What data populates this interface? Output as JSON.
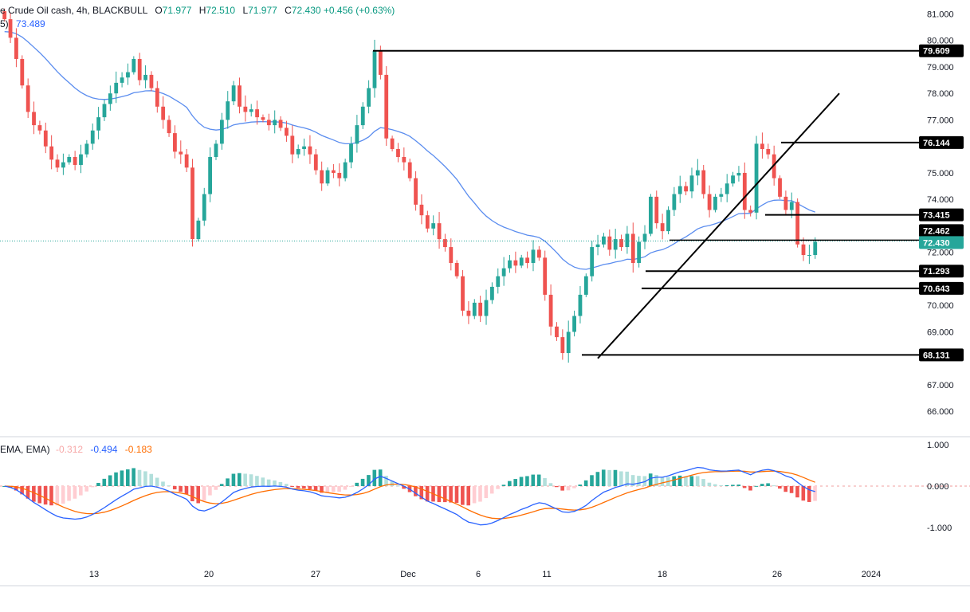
{
  "header": {
    "symbol": "e Crude Oil cash, 4h, BLACKBULL",
    "open_label": "O",
    "open": "71.977",
    "high_label": "H",
    "high": "72.510",
    "low_label": "L",
    "low": "71.977",
    "close_label": "C",
    "close": "72.430",
    "change": "+0.456 (+0.63%)"
  },
  "ma_legend": {
    "prefix": "5)",
    "value": "73.489"
  },
  "macd_legend": {
    "prefix": "EMA, EMA)",
    "hist": "-0.312",
    "macd": "-0.494",
    "signal": "-0.183"
  },
  "colors": {
    "up": "#26a69a",
    "down": "#ef5350",
    "ma": "#5b8def",
    "macd": "#2962ff",
    "signal": "#ff6d00",
    "hist_up": "#26a69a",
    "hist_up_light": "#b2dfdb",
    "hist_dn": "#ef5350",
    "hist_dn_light": "#ffcdd2"
  },
  "chart_data": {
    "type": "candlestick",
    "x_tick_labels": [
      "13",
      "20",
      "27",
      "Dec",
      "6",
      "11",
      "18",
      "26",
      "2024"
    ],
    "price_axis": {
      "ylim": [
        65.5,
        81.6
      ],
      "ticks": [
        "81.000",
        "80.000",
        "79.000",
        "78.000",
        "77.000",
        "75.000",
        "74.000",
        "72.000",
        "70.000",
        "69.000",
        "67.000",
        "66.000"
      ]
    },
    "current_price": "72.430",
    "horizontal_levels": [
      {
        "value": 79.609,
        "label": "79.609"
      },
      {
        "value": 76.144,
        "label": "76.144"
      },
      {
        "value": 73.415,
        "label": "73.415"
      },
      {
        "value": 72.462,
        "label": "72.462"
      },
      {
        "value": 72.43,
        "label": "72.430"
      },
      {
        "value": 71.293,
        "label": "71.293"
      },
      {
        "value": 70.643,
        "label": "70.643"
      },
      {
        "value": 68.131,
        "label": "68.131"
      }
    ],
    "trendline": {
      "from": [
        68.0,
        "Dec 13"
      ],
      "to": [
        78.0,
        "Dec 29"
      ]
    },
    "closes": [
      80.8,
      80.1,
      79.3,
      78.3,
      77.3,
      76.8,
      76.6,
      76.0,
      75.5,
      75.2,
      75.4,
      75.6,
      75.3,
      75.7,
      76.1,
      76.6,
      77.1,
      77.6,
      78.0,
      78.4,
      78.6,
      78.8,
      79.3,
      78.5,
      78.7,
      78.2,
      77.5,
      77.0,
      76.5,
      75.8,
      75.7,
      75.2,
      72.5,
      73.2,
      74.2,
      75.6,
      76.1,
      77.0,
      77.7,
      78.3,
      77.5,
      77.3,
      77.4,
      77.1,
      77.0,
      76.8,
      77.0,
      76.7,
      76.4,
      75.7,
      75.9,
      76.0,
      75.7,
      75.1,
      74.6,
      75.1,
      75.0,
      74.8,
      75.4,
      76.1,
      76.8,
      77.5,
      78.2,
      79.6,
      78.7,
      76.3,
      75.9,
      75.6,
      75.4,
      74.8,
      73.8,
      73.4,
      72.9,
      73.1,
      72.5,
      72.2,
      71.6,
      71.1,
      69.8,
      69.6,
      70.1,
      69.6,
      70.2,
      70.7,
      71.1,
      71.4,
      71.7,
      71.5,
      71.8,
      71.6,
      72.1,
      71.8,
      70.4,
      69.2,
      68.8,
      68.2,
      69.0,
      69.6,
      70.4,
      71.1,
      72.2,
      72.3,
      72.6,
      72.1,
      72.5,
      72.2,
      72.7,
      71.6,
      72.4,
      72.7,
      74.1,
      73.1,
      72.8,
      73.6,
      74.2,
      74.5,
      74.3,
      74.9,
      75.1,
      74.2,
      73.6,
      74.1,
      74.2,
      74.6,
      74.9,
      75.0,
      73.6,
      73.5,
      76.1,
      75.9,
      75.7,
      74.8,
      74.1,
      73.6,
      73.9,
      72.3,
      71.9,
      71.9,
      72.4
    ],
    "ma_note": "smoothed moving average line, last value 73.489",
    "macd": {
      "levels": [
        "1.000",
        "0.000",
        "-1.000"
      ],
      "last_hist": -0.312,
      "last_macd": -0.494,
      "last_signal": -0.183
    }
  }
}
